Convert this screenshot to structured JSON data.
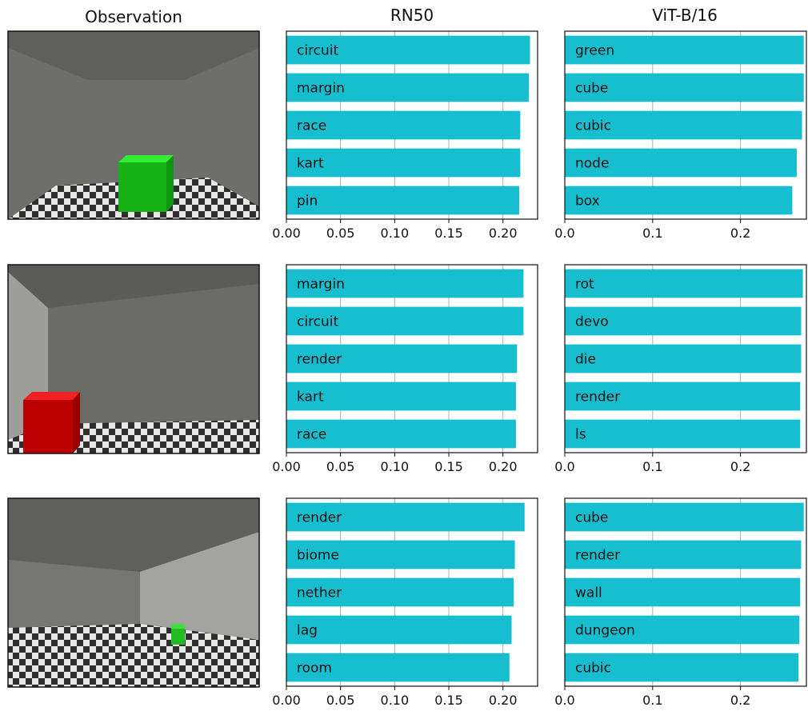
{
  "column_titles": {
    "observation": "Observation",
    "rn50": "RN50",
    "vit": "ViT-B/16"
  },
  "colors": {
    "bar": "#17becf",
    "grid": "#b0b0b0",
    "axis": "#111111"
  },
  "observations": [
    {
      "description": "green cube on checkered floor, gray room",
      "cube_color": "#22cc22"
    },
    {
      "description": "red cube near left wall on checkered floor",
      "cube_color": "#cc0000"
    },
    {
      "description": "small green cube far away, room with walls",
      "cube_color": "#22bb22"
    }
  ],
  "chart_data": [
    {
      "type": "bar",
      "row": 1,
      "model": "RN50",
      "orientation": "horizontal",
      "categories": [
        "circuit",
        "margin",
        "race",
        "kart",
        "pin"
      ],
      "values": [
        0.225,
        0.224,
        0.216,
        0.216,
        0.215
      ],
      "xlim": [
        0,
        0.232
      ],
      "xticks": [
        "0.00",
        "0.05",
        "0.10",
        "0.15",
        "0.20"
      ],
      "grid": "x"
    },
    {
      "type": "bar",
      "row": 1,
      "model": "ViT-B/16",
      "orientation": "horizontal",
      "categories": [
        "green",
        "cube",
        "cubic",
        "node",
        "box"
      ],
      "values": [
        0.272,
        0.272,
        0.27,
        0.264,
        0.259
      ],
      "xlim": [
        0,
        0.275
      ],
      "xticks": [
        "0.0",
        "0.1",
        "0.2"
      ],
      "grid": "x"
    },
    {
      "type": "bar",
      "row": 2,
      "model": "RN50",
      "orientation": "horizontal",
      "categories": [
        "margin",
        "circuit",
        "render",
        "kart",
        "race"
      ],
      "values": [
        0.219,
        0.219,
        0.213,
        0.212,
        0.212
      ],
      "xlim": [
        0,
        0.232
      ],
      "xticks": [
        "0.00",
        "0.05",
        "0.10",
        "0.15",
        "0.20"
      ],
      "grid": "x"
    },
    {
      "type": "bar",
      "row": 2,
      "model": "ViT-B/16",
      "orientation": "horizontal",
      "categories": [
        "rot",
        "devo",
        "die",
        "render",
        "ls"
      ],
      "values": [
        0.271,
        0.269,
        0.269,
        0.268,
        0.268
      ],
      "xlim": [
        0,
        0.275
      ],
      "xticks": [
        "0.0",
        "0.1",
        "0.2"
      ],
      "grid": "x"
    },
    {
      "type": "bar",
      "row": 3,
      "model": "RN50",
      "orientation": "horizontal",
      "categories": [
        "render",
        "biome",
        "nether",
        "lag",
        "room"
      ],
      "values": [
        0.22,
        0.211,
        0.21,
        0.208,
        0.206
      ],
      "xlim": [
        0,
        0.232
      ],
      "xticks": [
        "0.00",
        "0.05",
        "0.10",
        "0.15",
        "0.20"
      ],
      "grid": "x"
    },
    {
      "type": "bar",
      "row": 3,
      "model": "ViT-B/16",
      "orientation": "horizontal",
      "categories": [
        "cube",
        "render",
        "wall",
        "dungeon",
        "cubic"
      ],
      "values": [
        0.272,
        0.269,
        0.268,
        0.267,
        0.266
      ],
      "xlim": [
        0,
        0.275
      ],
      "xticks": [
        "0.0",
        "0.1",
        "0.2"
      ],
      "grid": "x"
    }
  ]
}
